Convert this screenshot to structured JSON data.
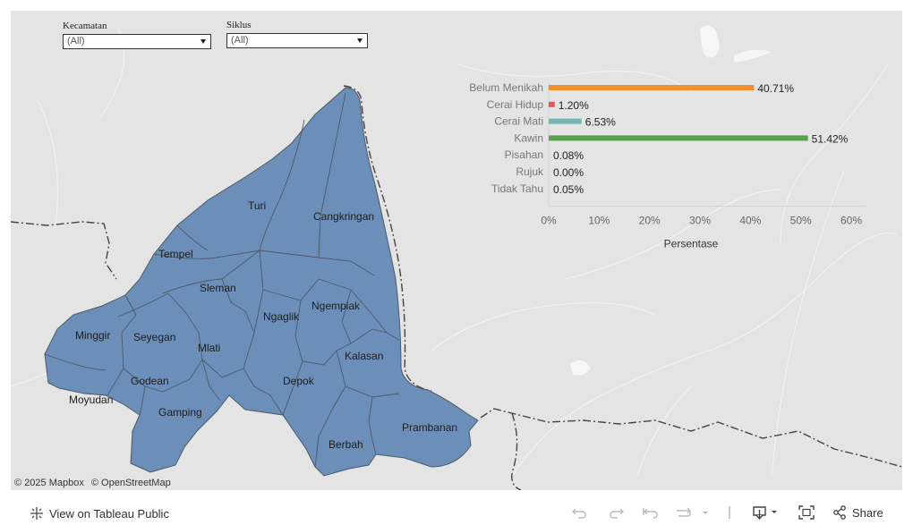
{
  "filters": {
    "kecamatan": {
      "label": "Kecamatan",
      "value": "(All)"
    },
    "siklus": {
      "label": "Siklus",
      "value": "(All)"
    }
  },
  "map": {
    "district_fill": "#6b8fb8",
    "district_labels": [
      "Turi",
      "Cangkringan",
      "Tempel",
      "Sleman",
      "Ngaglik",
      "Ngemplak",
      "Minggir",
      "Seyegan",
      "Mlati",
      "Kalasan",
      "Godean",
      "Depok",
      "Moyudan",
      "Gamping",
      "Prambanan",
      "Berbah"
    ],
    "attribution": [
      "© 2025 Mapbox",
      "© OpenStreetMap"
    ]
  },
  "chart_data": {
    "type": "bar",
    "orientation": "horizontal",
    "categories": [
      "Belum Menikah",
      "Cerai Hidup",
      "Cerai Mati",
      "Kawin",
      "Pisahan",
      "Rujuk",
      "Tidak Tahu"
    ],
    "values": [
      40.71,
      1.2,
      6.53,
      51.42,
      0.08,
      0.0,
      0.05
    ],
    "value_labels": [
      "40.71%",
      "1.20%",
      "6.53%",
      "51.42%",
      "0.08%",
      "0.00%",
      "0.05%"
    ],
    "colors": [
      "#f28e2b",
      "#e15759",
      "#76b7b2",
      "#59a14f",
      "#edc948",
      "#b07aa1",
      "#ff9da7"
    ],
    "xlabel": "Persentase",
    "xlim": [
      0,
      60
    ],
    "ticks": [
      0,
      10,
      20,
      30,
      40,
      50,
      60
    ],
    "tick_labels": [
      "0%",
      "10%",
      "20%",
      "30%",
      "40%",
      "50%",
      "60%"
    ],
    "grid": false
  },
  "toolbar": {
    "view_label": "View on Tableau Public",
    "share_label": "Share"
  }
}
